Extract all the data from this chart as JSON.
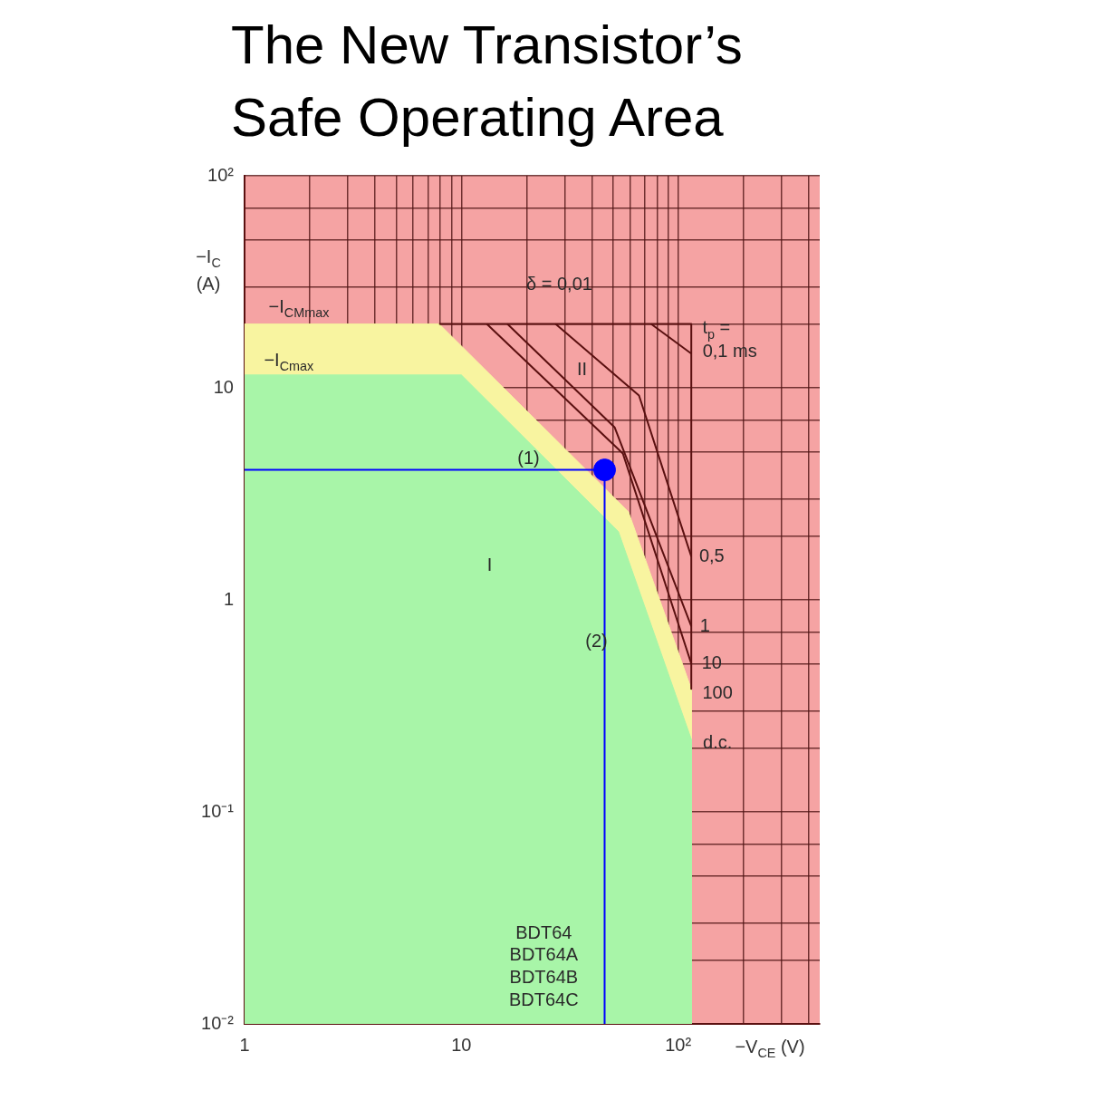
{
  "chart_data": {
    "type": "area",
    "title": "The New Transistor’s Safe Operating Area",
    "xlabel": "−V$_{CE}$ (V)",
    "ylabel": "−I$_{C}$ (A)",
    "log": "xy",
    "grid": true,
    "legend": false,
    "line_style": "solid",
    "xlim": [
      1,
      450
    ],
    "ylim": [
      0.01,
      100
    ],
    "xticks": [
      {
        "value": 1,
        "label": "1"
      },
      {
        "value": 2,
        "label": null
      },
      {
        "value": 3,
        "label": null
      },
      {
        "value": 4,
        "label": null
      },
      {
        "value": 5,
        "label": null
      },
      {
        "value": 6,
        "label": null
      },
      {
        "value": 7,
        "label": null
      },
      {
        "value": 8,
        "label": null
      },
      {
        "value": 9,
        "label": null
      },
      {
        "value": 10,
        "label": "10"
      },
      {
        "value": 20,
        "label": null
      },
      {
        "value": 30,
        "label": null
      },
      {
        "value": 40,
        "label": null
      },
      {
        "value": 50,
        "label": null
      },
      {
        "value": 60,
        "label": null
      },
      {
        "value": 70,
        "label": null
      },
      {
        "value": 80,
        "label": null
      },
      {
        "value": 90,
        "label": null
      },
      {
        "value": 100,
        "label": "10²"
      },
      {
        "value": 200,
        "label": null
      },
      {
        "value": 300,
        "label": null
      },
      {
        "value": 400,
        "label": null
      }
    ],
    "yticks": [
      {
        "value": 0.01,
        "label": "10⁻²"
      },
      {
        "value": 0.02,
        "label": null
      },
      {
        "value": 0.03,
        "label": null
      },
      {
        "value": 0.05,
        "label": null
      },
      {
        "value": 0.07,
        "label": null
      },
      {
        "value": 0.1,
        "label": "10⁻¹"
      },
      {
        "value": 0.2,
        "label": null
      },
      {
        "value": 0.3,
        "label": null
      },
      {
        "value": 0.5,
        "label": null
      },
      {
        "value": 0.7,
        "label": null
      },
      {
        "value": 1,
        "label": "1"
      },
      {
        "value": 2,
        "label": null
      },
      {
        "value": 3,
        "label": null
      },
      {
        "value": 5,
        "label": null
      },
      {
        "value": 7,
        "label": null
      },
      {
        "value": 10,
        "label": "10"
      },
      {
        "value": 20,
        "label": null
      },
      {
        "value": 30,
        "label": null
      },
      {
        "value": 50,
        "label": null
      },
      {
        "value": 70,
        "label": null
      },
      {
        "value": 100,
        "label": "10²"
      }
    ],
    "bands": [
      {
        "axis": "x",
        "from": 1,
        "to": 450,
        "color": "#f5a3a3"
      }
    ],
    "series": [
      {
        "color": "#f8f4a0",
        "x": [
          1,
          7.9,
          59,
          115,
          115
        ],
        "values": [
          20,
          20,
          2.6,
          0.38,
          0.01
        ]
      },
      {
        "color": "#a8f5a8",
        "x": [
          1,
          10,
          53,
          115,
          115
        ],
        "values": [
          11.5,
          11.5,
          2.1,
          0.22,
          0.01
        ]
      },
      {
        "type": "line",
        "color": "#5a1010",
        "x": [
          7.9,
          115,
          115
        ],
        "values": [
          20,
          20,
          0.38
        ]
      },
      {
        "type": "line",
        "color": "#5a1010",
        "x": [
          75,
          115
        ],
        "values": [
          20,
          14.5
        ]
      },
      {
        "type": "line",
        "color": "#5a1010",
        "x": [
          27.2,
          66,
          115
        ],
        "values": [
          20,
          9.2,
          1.6
        ]
      },
      {
        "type": "line",
        "color": "#5a1010",
        "x": [
          16.3,
          51,
          115
        ],
        "values": [
          20,
          6.5,
          0.75
        ]
      },
      {
        "type": "line",
        "color": "#5a1010",
        "x": [
          13.1,
          55.6,
          115
        ],
        "values": [
          20,
          4.9,
          0.5
        ]
      },
      {
        "type": "line",
        "color": "#0000ff",
        "x": [
          1,
          45.8,
          45.8
        ],
        "values": [
          4.1,
          4.1,
          0.01
        ]
      },
      {
        "type": "scatter",
        "color": "#0000ff",
        "marker": "circle",
        "x": [
          45.8
        ],
        "values": [
          4.1
        ]
      }
    ],
    "annotations": [
      "−I$_{CMmax}$",
      "−I$_{Cmax}$",
      "δ = 0,01",
      "t$_{p}$ =",
      "0,1 ms",
      "II",
      "I",
      "(1)",
      "(2)",
      "0,5",
      "1",
      "10",
      "100",
      "d.c.",
      "BDT64",
      "BDT64A",
      "BDT64B",
      "BDT64C"
    ]
  }
}
